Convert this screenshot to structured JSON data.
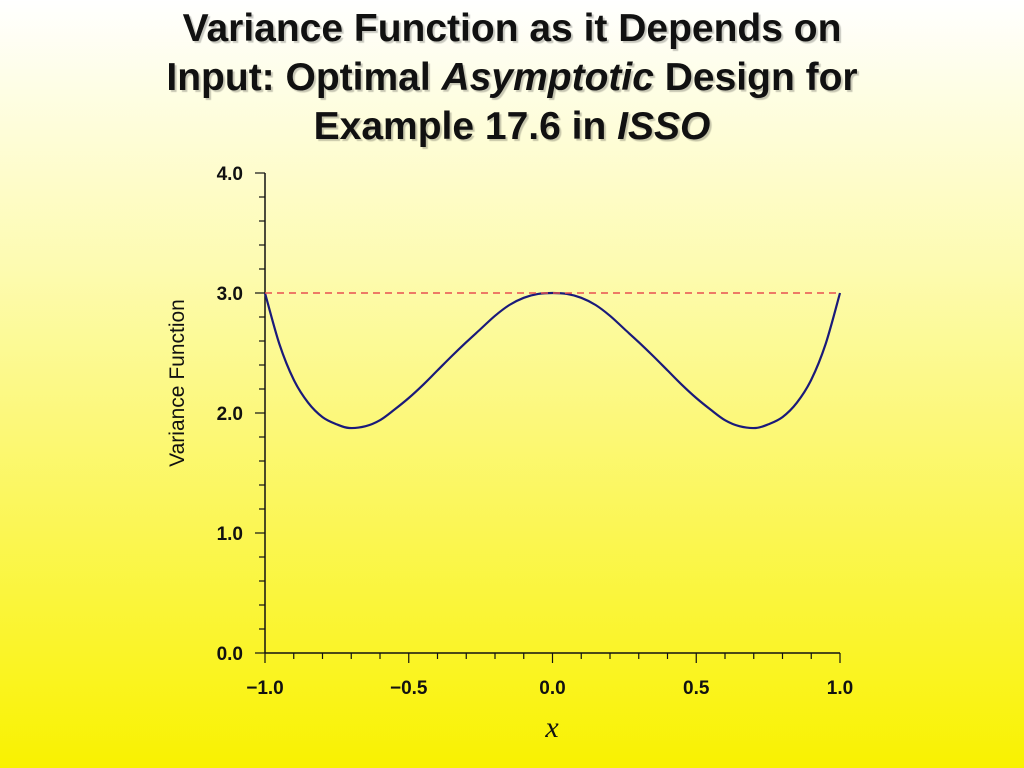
{
  "slide": {
    "title_line1": "Variance Function as it Depends on",
    "title_line2_a": "Input: Optimal ",
    "title_line2_em": "Asymptotic",
    "title_line2_b": " Design for",
    "title_line3_a": "Example 17.6 in ",
    "title_line3_em": "ISSO"
  },
  "chart_data": {
    "type": "line",
    "title": "Variance Function as it Depends on Input: Optimal Asymptotic Design for Example 17.6 in ISSO",
    "xlabel": "x",
    "ylabel": "Variance Function",
    "xlim": [
      -1.0,
      1.0
    ],
    "ylim": [
      0.0,
      4.0
    ],
    "x_ticks": [
      -1.0,
      -0.5,
      0.0,
      0.5,
      1.0
    ],
    "x_tick_labels": [
      "−1.0",
      "−0.5",
      "0.0",
      "0.5",
      "1.0"
    ],
    "y_ticks": [
      0.0,
      1.0,
      2.0,
      3.0,
      4.0
    ],
    "y_tick_labels": [
      "0.0",
      "1.0",
      "2.0",
      "3.0",
      "4.0"
    ],
    "series": [
      {
        "color": "#1a1a7a",
        "style": "solid",
        "x": [
          -1.0,
          -0.95,
          -0.9,
          -0.85,
          -0.8,
          -0.75,
          -0.707,
          -0.65,
          -0.6,
          -0.55,
          -0.5,
          -0.45,
          -0.4,
          -0.35,
          -0.3,
          -0.25,
          -0.2,
          -0.15,
          -0.1,
          -0.05,
          0.0,
          0.05,
          0.1,
          0.15,
          0.2,
          0.25,
          0.3,
          0.35,
          0.4,
          0.45,
          0.5,
          0.55,
          0.6,
          0.65,
          0.707,
          0.75,
          0.8,
          0.85,
          0.9,
          0.95,
          1.0
        ],
        "y": [
          3.0,
          2.575,
          2.277,
          2.086,
          1.966,
          1.905,
          1.875,
          1.89,
          1.94,
          2.028,
          2.125,
          2.235,
          2.355,
          2.475,
          2.59,
          2.7,
          2.81,
          2.9,
          2.96,
          2.992,
          3.0,
          2.992,
          2.96,
          2.9,
          2.81,
          2.7,
          2.59,
          2.475,
          2.355,
          2.235,
          2.125,
          2.028,
          1.94,
          1.89,
          1.875,
          1.905,
          1.966,
          2.086,
          2.277,
          2.575,
          3.0
        ]
      },
      {
        "color": "#e85050",
        "style": "dashed",
        "x": [
          -1.0,
          1.0
        ],
        "y": [
          3.0,
          3.0
        ]
      }
    ],
    "grid": false
  }
}
